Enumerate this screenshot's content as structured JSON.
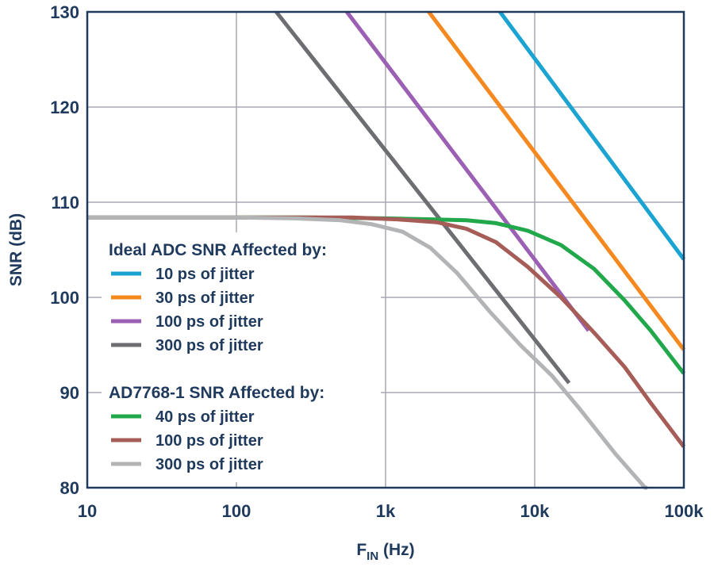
{
  "chart_data": {
    "type": "line",
    "xscale": "log",
    "xlim": [
      10,
      100000
    ],
    "ylim": [
      80,
      130
    ],
    "x_ticks": [
      {
        "value": 10,
        "label": "10"
      },
      {
        "value": 100,
        "label": "100"
      },
      {
        "value": 1000,
        "label": "1k"
      },
      {
        "value": 10000,
        "label": "10k"
      },
      {
        "value": 100000,
        "label": "100k"
      }
    ],
    "y_ticks": [
      {
        "value": 80,
        "label": "80"
      },
      {
        "value": 90,
        "label": "90"
      },
      {
        "value": 100,
        "label": "100"
      },
      {
        "value": 110,
        "label": "110"
      },
      {
        "value": 120,
        "label": "120"
      },
      {
        "value": 130,
        "label": "130"
      }
    ],
    "xlabel": {
      "main": "F",
      "sub": "IN",
      "unit": " (Hz)"
    },
    "ylabel": "SNR (dB)",
    "grid": true,
    "legend": {
      "placement": "center-left",
      "groups": [
        {
          "title": "Ideal ADC SNR Affected by:",
          "entries": [
            "10 ps of jitter",
            "30 ps of jitter",
            "100 ps of jitter",
            "300 ps of jitter"
          ]
        },
        {
          "title": "AD7768-1 SNR Affected by:",
          "entries": [
            "40 ps of jitter",
            "100 ps of jitter",
            "300 ps of jitter"
          ]
        }
      ]
    },
    "series": [
      {
        "name": "Ideal 10 ps of jitter",
        "color": "#1ba3d1",
        "x": [
          5857,
          100000
        ],
        "y": [
          130,
          104.0
        ]
      },
      {
        "name": "Ideal 30 ps of jitter",
        "color": "#f5891f",
        "x": [
          1950,
          100000
        ],
        "y": [
          130,
          94.5
        ]
      },
      {
        "name": "Ideal 100 ps of jitter",
        "color": "#9b5fb3",
        "x": [
          550,
          23000
        ],
        "y": [
          130,
          96.5
        ]
      },
      {
        "name": "Ideal 300 ps of jitter",
        "color": "#6d6e71",
        "x": [
          185,
          17000
        ],
        "y": [
          130,
          91.0
        ]
      },
      {
        "name": "AD7768-1 40 ps of jitter",
        "color": "#21a84a",
        "x": [
          10,
          300,
          1000,
          2000,
          3500,
          5500,
          9000,
          15000,
          25000,
          40000,
          60000,
          100000
        ],
        "y": [
          108.4,
          108.4,
          108.3,
          108.2,
          108.1,
          107.8,
          107.0,
          105.5,
          103.0,
          99.7,
          96.5,
          92.0
        ]
      },
      {
        "name": "AD7768-1 100 ps of jitter",
        "color": "#a65c57",
        "x": [
          10,
          200,
          600,
          1200,
          2200,
          3500,
          5500,
          9000,
          15000,
          25000,
          40000,
          60000,
          100000
        ],
        "y": [
          108.4,
          108.4,
          108.4,
          108.2,
          107.9,
          107.2,
          105.8,
          103.2,
          100.0,
          96.3,
          92.7,
          88.9,
          84.3
        ]
      },
      {
        "name": "AD7768-1 300 ps of jitter",
        "color": "#b3b4b6",
        "x": [
          10,
          100,
          250,
          500,
          800,
          1300,
          2000,
          3000,
          5000,
          8000,
          13000,
          20000,
          35000,
          55000,
          57000
        ],
        "y": [
          108.4,
          108.4,
          108.3,
          108.1,
          107.7,
          106.9,
          105.2,
          102.6,
          98.5,
          95.0,
          91.8,
          88.3,
          83.5,
          80.0,
          80.0
        ]
      }
    ]
  }
}
